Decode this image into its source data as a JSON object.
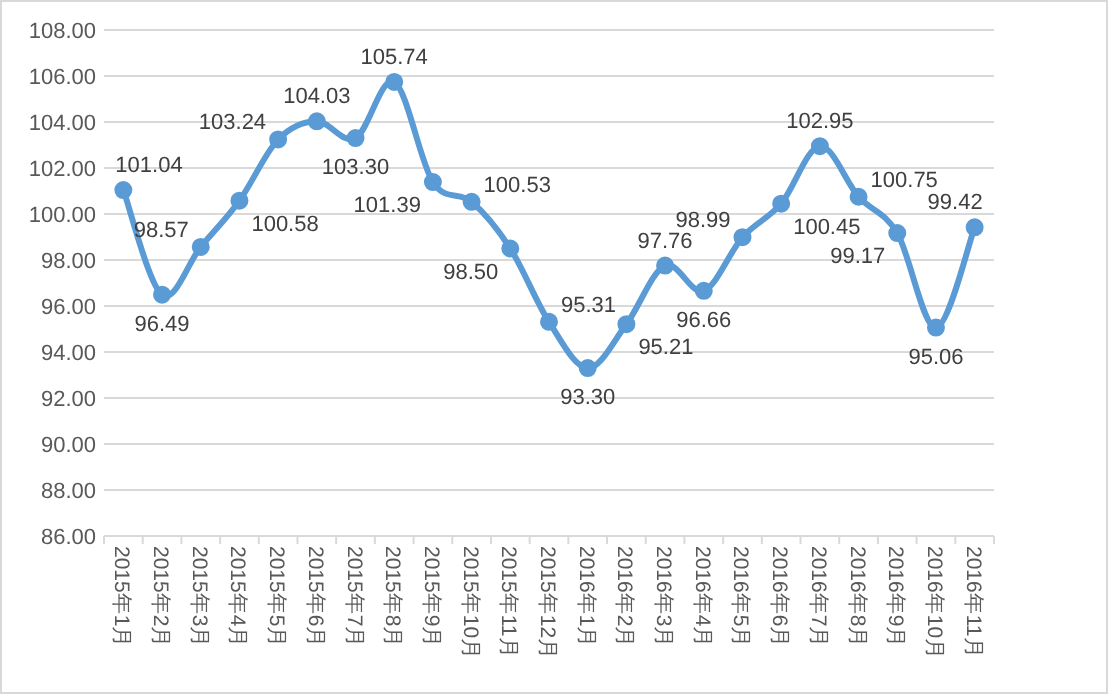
{
  "chart_data": {
    "type": "line",
    "categories": [
      "2015年1月",
      "2015年2月",
      "2015年3月",
      "2015年4月",
      "2015年5月",
      "2015年6月",
      "2015年7月",
      "2015年8月",
      "2015年9月",
      "2015年10月",
      "2015年11月",
      "2015年12月",
      "2016年1月",
      "2016年2月",
      "2016年3月",
      "2016年4月",
      "2016年5月",
      "2016年6月",
      "2016年7月",
      "2016年8月",
      "2016年9月",
      "2016年10月",
      "2016年11月"
    ],
    "values": [
      101.04,
      96.49,
      98.57,
      100.58,
      103.24,
      104.03,
      103.3,
      105.74,
      101.39,
      100.53,
      98.5,
      95.31,
      93.3,
      95.21,
      97.76,
      96.66,
      98.99,
      100.45,
      102.95,
      100.75,
      99.17,
      95.06,
      99.42
    ],
    "value_labels": [
      "101.04",
      "96.49",
      "98.57",
      "100.58",
      "103.24",
      "104.03",
      "103.30",
      "105.74",
      "101.39",
      "100.53",
      "98.50",
      "95.31",
      "93.30",
      "95.21",
      "97.76",
      "96.66",
      "98.99",
      "100.45",
      "102.95",
      "100.75",
      "99.17",
      "95.06",
      "99.42"
    ],
    "color": "#5b9bd5",
    "marker": "circle",
    "grid": "y",
    "ylim": [
      86,
      108
    ],
    "yticks": [
      {
        "value": 86,
        "label": "86.00"
      },
      {
        "value": 88,
        "label": "88.00"
      },
      {
        "value": 90,
        "label": "90.00"
      },
      {
        "value": 92,
        "label": "92.00"
      },
      {
        "value": 94,
        "label": "94.00"
      },
      {
        "value": 96,
        "label": "96.00"
      },
      {
        "value": 98,
        "label": "98.00"
      },
      {
        "value": 100,
        "label": "100.00"
      },
      {
        "value": 102,
        "label": "102.00"
      },
      {
        "value": 104,
        "label": "104.00"
      },
      {
        "value": 106,
        "label": "106.00"
      },
      {
        "value": 108,
        "label": "108.00"
      }
    ]
  }
}
